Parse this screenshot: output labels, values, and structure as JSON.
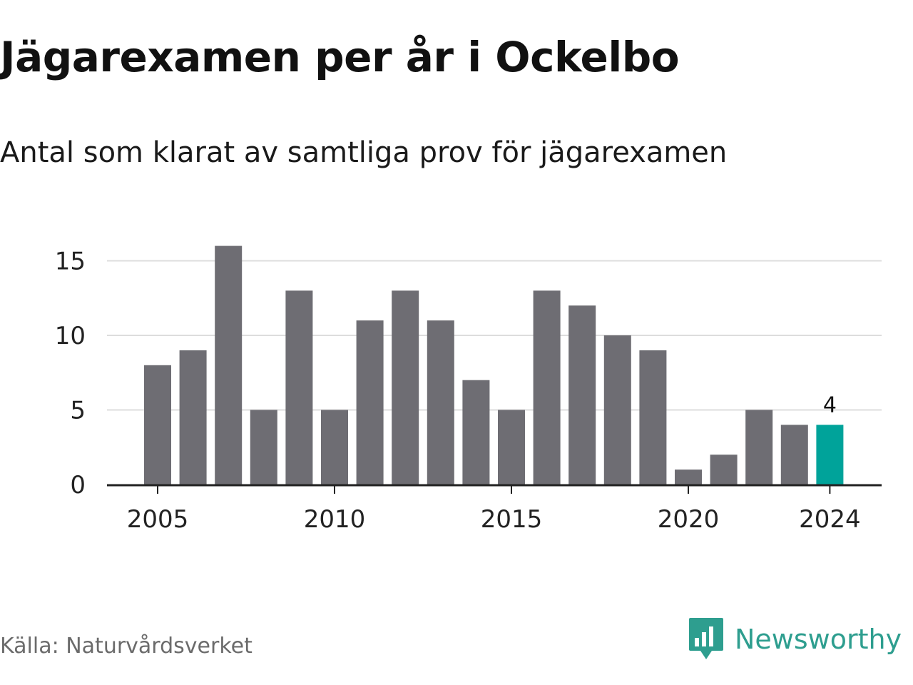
{
  "title": "Jägarexamen per år i Ockelbo",
  "subtitle": "Antal som klarat av samtliga prov för jägarexamen",
  "source": "Källa: Naturvårdsverket",
  "brand": {
    "name": "Newsworthy",
    "logo_icon": "newsworthy-logo-icon"
  },
  "colors": {
    "bar": "#6e6d73",
    "highlight": "#00a39a",
    "grid": "#dddddd",
    "axis": "#222222",
    "brand": "#2e9e8f"
  },
  "chart_data": {
    "type": "bar",
    "x": [
      2005,
      2006,
      2007,
      2008,
      2009,
      2010,
      2011,
      2012,
      2013,
      2014,
      2015,
      2016,
      2017,
      2018,
      2019,
      2020,
      2021,
      2022,
      2023,
      2024
    ],
    "values": [
      8,
      9,
      16,
      5,
      13,
      5,
      11,
      13,
      11,
      7,
      5,
      13,
      12,
      10,
      9,
      1,
      2,
      5,
      4,
      4
    ],
    "highlight_index": 19,
    "data_labels": [
      {
        "index": 19,
        "text": "4"
      }
    ],
    "ylim": [
      0,
      16
    ],
    "yticks": [
      0,
      5,
      10,
      15
    ],
    "xticks": [
      2005,
      2010,
      2015,
      2020,
      2024
    ],
    "grid": true,
    "xlabel": "",
    "ylabel": ""
  }
}
